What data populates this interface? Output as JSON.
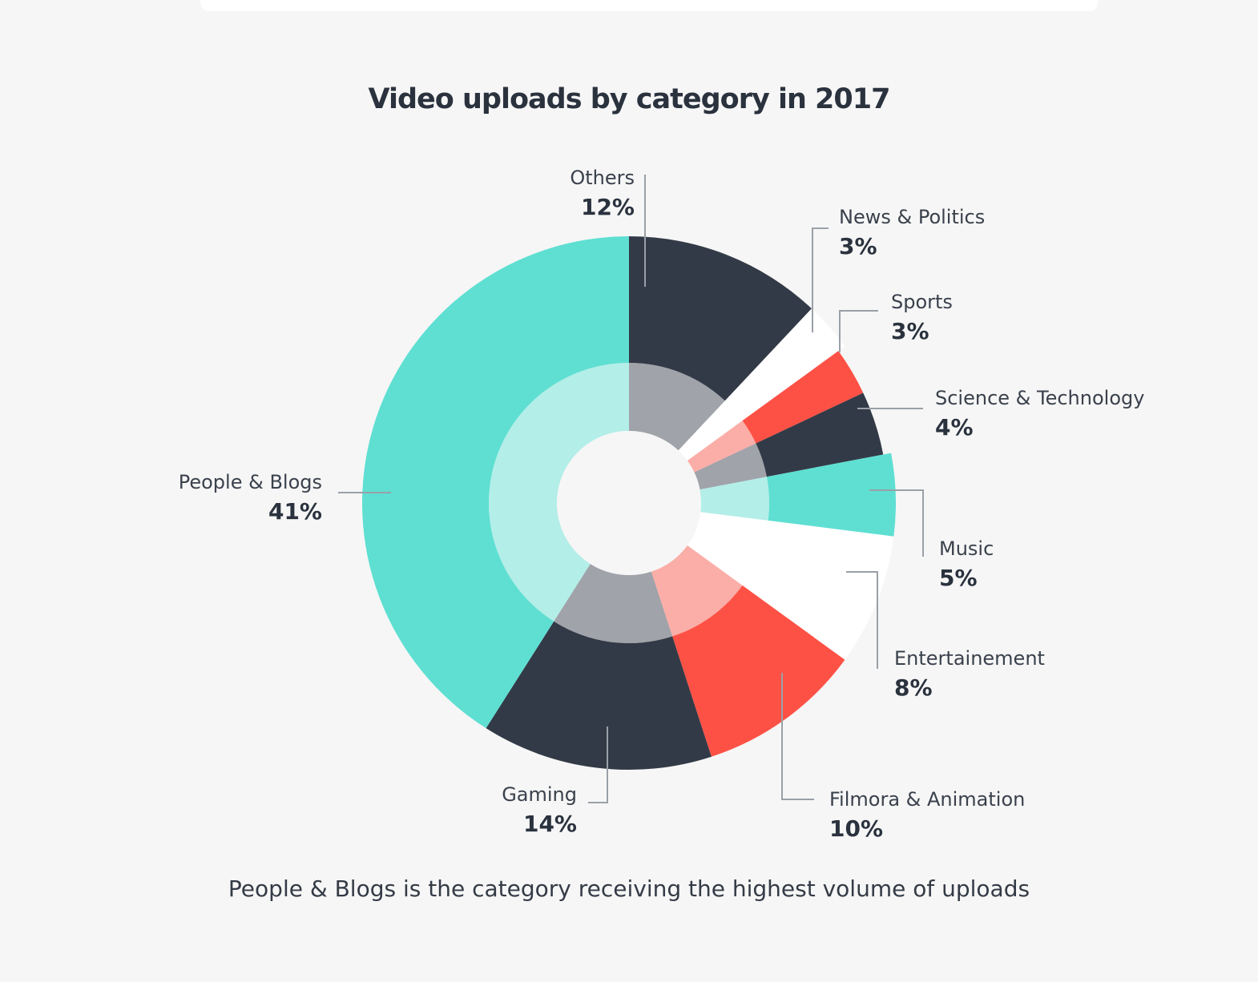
{
  "chart_data": {
    "type": "pie",
    "title": "Video uploads by category in 2017",
    "caption": "People & Blogs is the category receiving the highest volume of uploads",
    "slices": [
      {
        "label": "Others",
        "value": 12,
        "value_label": "12%",
        "color": "#333a47"
      },
      {
        "label": "News & Politics",
        "value": 3,
        "value_label": "3%",
        "color": "#ffffff"
      },
      {
        "label": "Sports",
        "value": 3,
        "value_label": "3%",
        "color": "#fe5145"
      },
      {
        "label": "Science & Technology",
        "value": 4,
        "value_label": "4%",
        "color": "#333a47"
      },
      {
        "label": "Music",
        "value": 5,
        "value_label": "5%",
        "color": "#5edfd2"
      },
      {
        "label": "Entertainement",
        "value": 8,
        "value_label": "8%",
        "color": "#ffffff"
      },
      {
        "label": "Filmora & Animation",
        "value": 10,
        "value_label": "10%",
        "color": "#fe5145"
      },
      {
        "label": "Gaming",
        "value": 14,
        "value_label": "14%",
        "color": "#333a47"
      },
      {
        "label": "People & Blogs",
        "value": 41,
        "value_label": "41%",
        "color": "#5edfd2"
      }
    ]
  }
}
